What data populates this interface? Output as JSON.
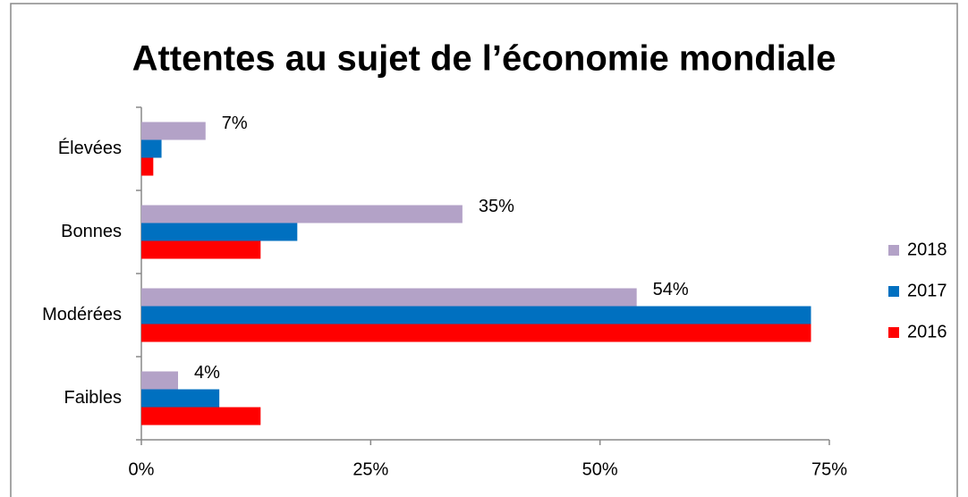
{
  "chart_data": {
    "type": "hbar",
    "title": "Attentes au sujet de l’économie mondiale",
    "categories": [
      "Élevées",
      "Bonnes",
      "Modérées",
      "Faibles"
    ],
    "series": [
      {
        "name": "2018",
        "color": "#b3a2c7",
        "values": [
          7,
          35,
          54,
          4
        ],
        "value_labels": [
          "7%",
          "35%",
          "54%",
          "4%"
        ]
      },
      {
        "name": "2017",
        "color": "#0070c0",
        "values": [
          2.2,
          17,
          73,
          8.5
        ]
      },
      {
        "name": "2016",
        "color": "#ff0000",
        "values": [
          1.3,
          13,
          73,
          13
        ]
      }
    ],
    "xlim": [
      0,
      75
    ],
    "xticks": [
      {
        "value": 0,
        "label": "0%"
      },
      {
        "value": 25,
        "label": "25%"
      },
      {
        "value": 50,
        "label": "50%"
      },
      {
        "value": 75,
        "label": "75%"
      }
    ],
    "legend": "right"
  }
}
